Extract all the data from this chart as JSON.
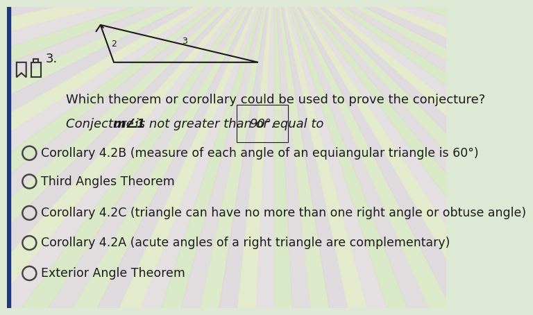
{
  "background_color": "#e8e8e0",
  "question_text": "Which theorem or corollary could be used to prove the conjecture?",
  "conjecture_line": "Conjecture: m∠1 is not greater than or equal to 90°.",
  "options": [
    "Corollary 4.2B (measure of each angle of an equiangular triangle is 60°)",
    "Third Angles Theorem",
    "Corollary 4.2C (triangle can have no more than one right angle or obtuse angle)",
    "Corollary 4.2A (acute angles of a right triangle are complementary)",
    "Exterior Angle Theorem"
  ],
  "header_number": "3.",
  "triangle_label_1": "2",
  "triangle_label_2": "3",
  "text_color": "#1a1a1a",
  "question_fontsize": 13.0,
  "conjecture_fontsize": 13.0,
  "option_fontsize": 12.5,
  "fig_width": 8.22,
  "fig_height": 5.64,
  "stripe_colors_green_yellow": [
    "#c8e8a0",
    "#d4f0a8",
    "#e0f4b0"
  ],
  "stripe_colors_pink_purple": [
    "#e8c0e8",
    "#ddb8e8",
    "#d0a8e0"
  ],
  "stripe_base": "#dde8d8"
}
